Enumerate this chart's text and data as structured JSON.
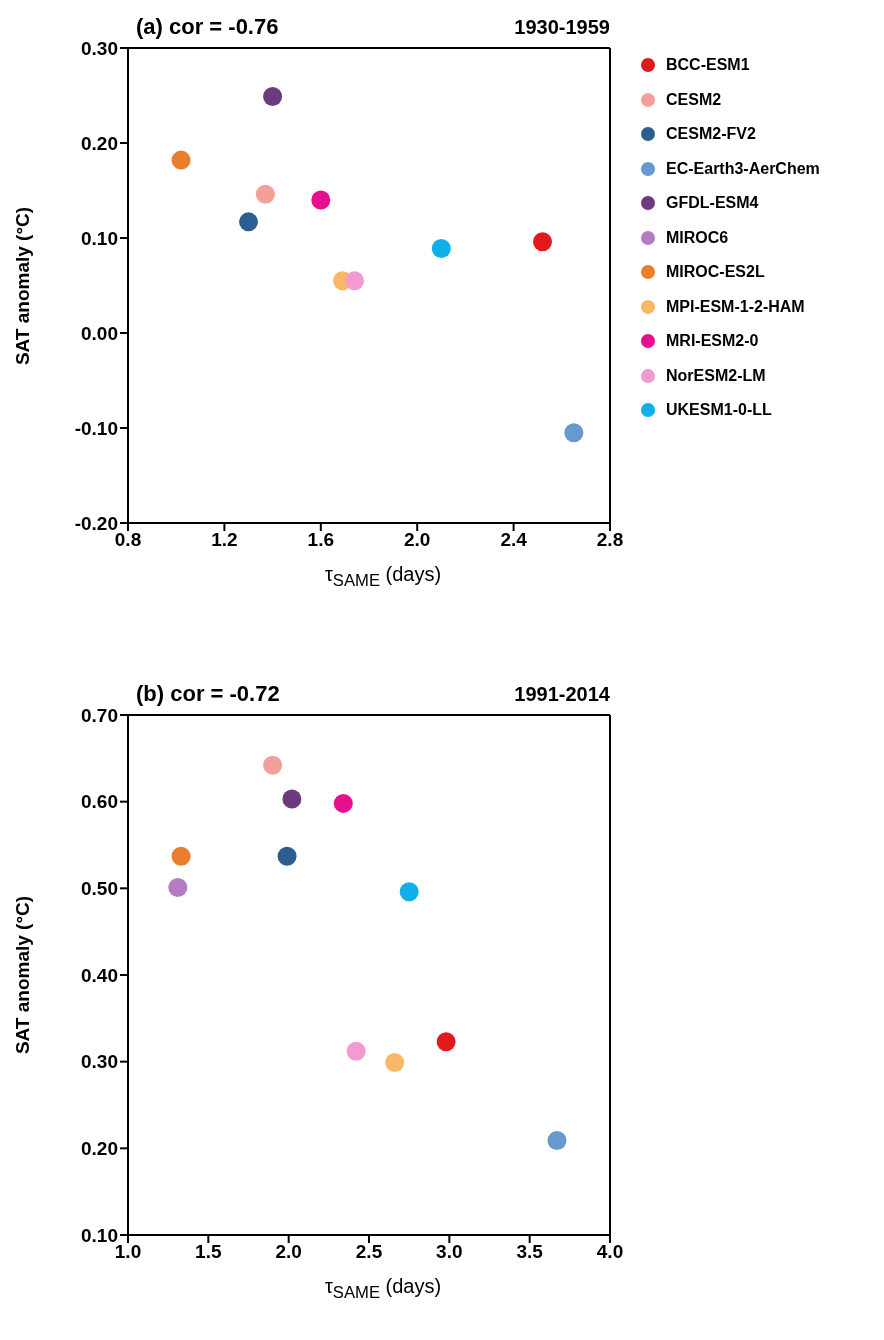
{
  "chart_data": [
    {
      "type": "scatter",
      "title": "(a) cor = -0.76",
      "subtitle": "1930-1959",
      "xlabel": "τ$_{SAME}$ (days)",
      "ylabel": "SAT anomaly (°C)",
      "xlim": [
        0.8,
        2.8
      ],
      "xticks": [
        0.8,
        1.2,
        1.6,
        {
          "value": 2.0,
          "label": "2.0"
        },
        2.4,
        2.8
      ],
      "ylim": [
        -0.2,
        0.3
      ],
      "yticks": [
        {
          "value": -0.2,
          "label": "-0.20"
        },
        {
          "value": -0.1,
          "label": "-0.10"
        },
        {
          "value": 0,
          "label": "0.00"
        },
        {
          "value": 0.1,
          "label": "0.10"
        },
        {
          "value": 0.2,
          "label": "0.20"
        },
        {
          "value": 0.3,
          "label": "0.30"
        }
      ],
      "marker": "circle",
      "legend": "right",
      "series": [
        {
          "name": "BCC-ESM1",
          "color": "#e31a1c",
          "x": [
            2.52
          ],
          "values": [
            0.096
          ]
        },
        {
          "name": "CESM2",
          "color": "#f4a09a",
          "x": [
            1.37
          ],
          "values": [
            0.146
          ]
        },
        {
          "name": "CESM2-FV2",
          "color": "#2a5f8f",
          "x": [
            1.3
          ],
          "values": [
            0.117
          ]
        },
        {
          "name": "EC-Earth3-AerChem",
          "color": "#6699cc",
          "x": [
            2.65
          ],
          "values": [
            -0.105
          ]
        },
        {
          "name": "GFDL-ESM4",
          "color": "#6e3a7e",
          "x": [
            1.4
          ],
          "values": [
            0.249
          ]
        },
        {
          "name": "MIROC6",
          "color": "#b57cc6",
          "x": [
            null
          ],
          "values": [
            null
          ]
        },
        {
          "name": "MIROC-ES2L",
          "color": "#ea7e2c",
          "x": [
            1.02
          ],
          "values": [
            0.182
          ]
        },
        {
          "name": "MPI-ESM-1-2-HAM",
          "color": "#f8b865",
          "x": [
            1.69
          ],
          "values": [
            0.055
          ]
        },
        {
          "name": "MRI-ESM2-0",
          "color": "#e7108c",
          "x": [
            1.6
          ],
          "values": [
            0.14
          ]
        },
        {
          "name": "NorESM2-LM",
          "color": "#f29bd0",
          "x": [
            1.74
          ],
          "values": [
            0.055
          ]
        },
        {
          "name": "UKESM1-0-LL",
          "color": "#0fb0ea",
          "x": [
            2.1
          ],
          "values": [
            0.089
          ]
        }
      ]
    },
    {
      "type": "scatter",
      "title": "(b) cor = -0.72",
      "subtitle": "1991-2014",
      "xlabel": "τ$_{SAME}$ (days)",
      "ylabel": "SAT anomaly (°C)",
      "xlim": [
        1.0,
        4.0
      ],
      "xticks": [
        {
          "value": 1,
          "label": "1.0"
        },
        1.5,
        {
          "value": 2,
          "label": "2.0"
        },
        2.5,
        {
          "value": 3,
          "label": "3.0"
        },
        3.5,
        {
          "value": 4,
          "label": "4.0"
        }
      ],
      "ylim": [
        0.1,
        0.7
      ],
      "yticks": [
        {
          "value": 0.1,
          "label": "0.10"
        },
        {
          "value": 0.2,
          "label": "0.20"
        },
        {
          "value": 0.3,
          "label": "0.30"
        },
        {
          "value": 0.4,
          "label": "0.40"
        },
        {
          "value": 0.5,
          "label": "0.50"
        },
        {
          "value": 0.6,
          "label": "0.60"
        },
        {
          "value": 0.7,
          "label": "0.70"
        }
      ],
      "marker": "circle",
      "series": [
        {
          "color": "#e31a1c",
          "x": [
            2.98
          ],
          "values": [
            0.323
          ]
        },
        {
          "color": "#f4a09a",
          "x": [
            1.9
          ],
          "values": [
            0.642
          ]
        },
        {
          "color": "#2a5f8f",
          "x": [
            1.99
          ],
          "values": [
            0.537
          ]
        },
        {
          "color": "#6699cc",
          "x": [
            3.67
          ],
          "values": [
            0.209
          ]
        },
        {
          "color": "#6e3a7e",
          "x": [
            2.02
          ],
          "values": [
            0.603
          ]
        },
        {
          "color": "#b57cc6",
          "x": [
            1.31
          ],
          "values": [
            0.501
          ]
        },
        {
          "color": "#ea7e2c",
          "x": [
            1.33
          ],
          "values": [
            0.537
          ]
        },
        {
          "color": "#f8b865",
          "x": [
            2.66
          ],
          "values": [
            0.299
          ]
        },
        {
          "color": "#e7108c",
          "x": [
            2.34
          ],
          "values": [
            0.598
          ]
        },
        {
          "color": "#f29bd0",
          "x": [
            2.42
          ],
          "values": [
            0.312
          ]
        },
        {
          "color": "#0fb0ea",
          "x": [
            2.75
          ],
          "values": [
            0.496
          ]
        }
      ]
    }
  ]
}
